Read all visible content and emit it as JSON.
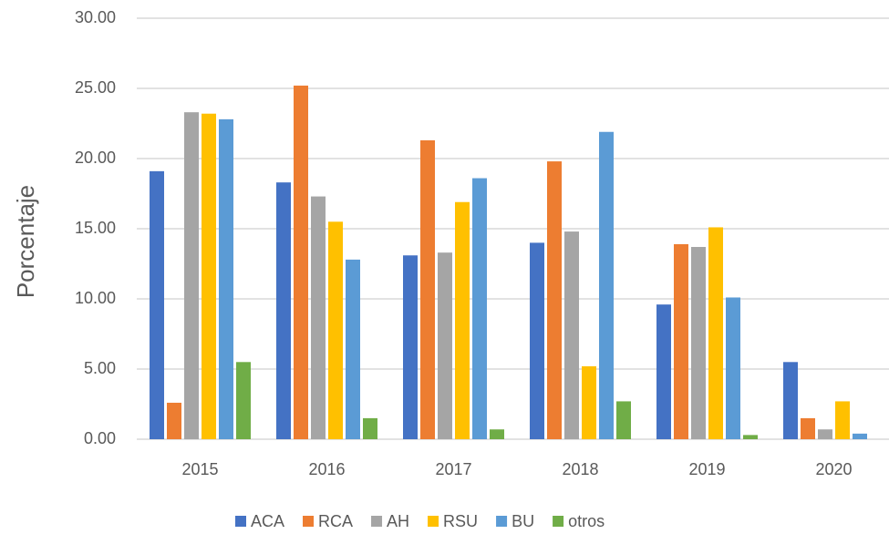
{
  "chart_data": {
    "type": "bar",
    "y_label": "Porcentaje",
    "categories": [
      "2015",
      "2016",
      "2017",
      "2018",
      "2019",
      "2020"
    ],
    "series": [
      {
        "name": "ACA",
        "color": "#4472c4",
        "values": [
          19.1,
          18.3,
          13.1,
          14.0,
          9.6,
          5.5
        ]
      },
      {
        "name": "RCA",
        "color": "#ed7d31",
        "values": [
          2.6,
          25.2,
          21.3,
          19.8,
          13.9,
          1.5
        ]
      },
      {
        "name": "AH",
        "color": "#a5a5a5",
        "values": [
          23.3,
          17.3,
          13.3,
          14.8,
          13.7,
          0.7
        ]
      },
      {
        "name": "RSU",
        "color": "#ffc000",
        "values": [
          23.2,
          15.5,
          16.9,
          5.2,
          15.1,
          2.7
        ]
      },
      {
        "name": "BU",
        "color": "#5b9bd5",
        "values": [
          22.8,
          12.8,
          18.6,
          21.9,
          10.1,
          0.4
        ]
      },
      {
        "name": "otros",
        "color": "#70ad47",
        "values": [
          5.5,
          1.5,
          0.7,
          2.7,
          0.3,
          null
        ]
      }
    ],
    "ylim": [
      0,
      30
    ],
    "yticks": [
      {
        "value": 0,
        "label": "0.00"
      },
      {
        "value": 5,
        "label": "5.00"
      },
      {
        "value": 10,
        "label": "10.00"
      },
      {
        "value": 15,
        "label": "15.00"
      },
      {
        "value": 20,
        "label": "20.00"
      },
      {
        "value": 25,
        "label": "25.00"
      },
      {
        "value": 30,
        "label": "30.00"
      }
    ],
    "grid": true,
    "legend": "bottom"
  }
}
